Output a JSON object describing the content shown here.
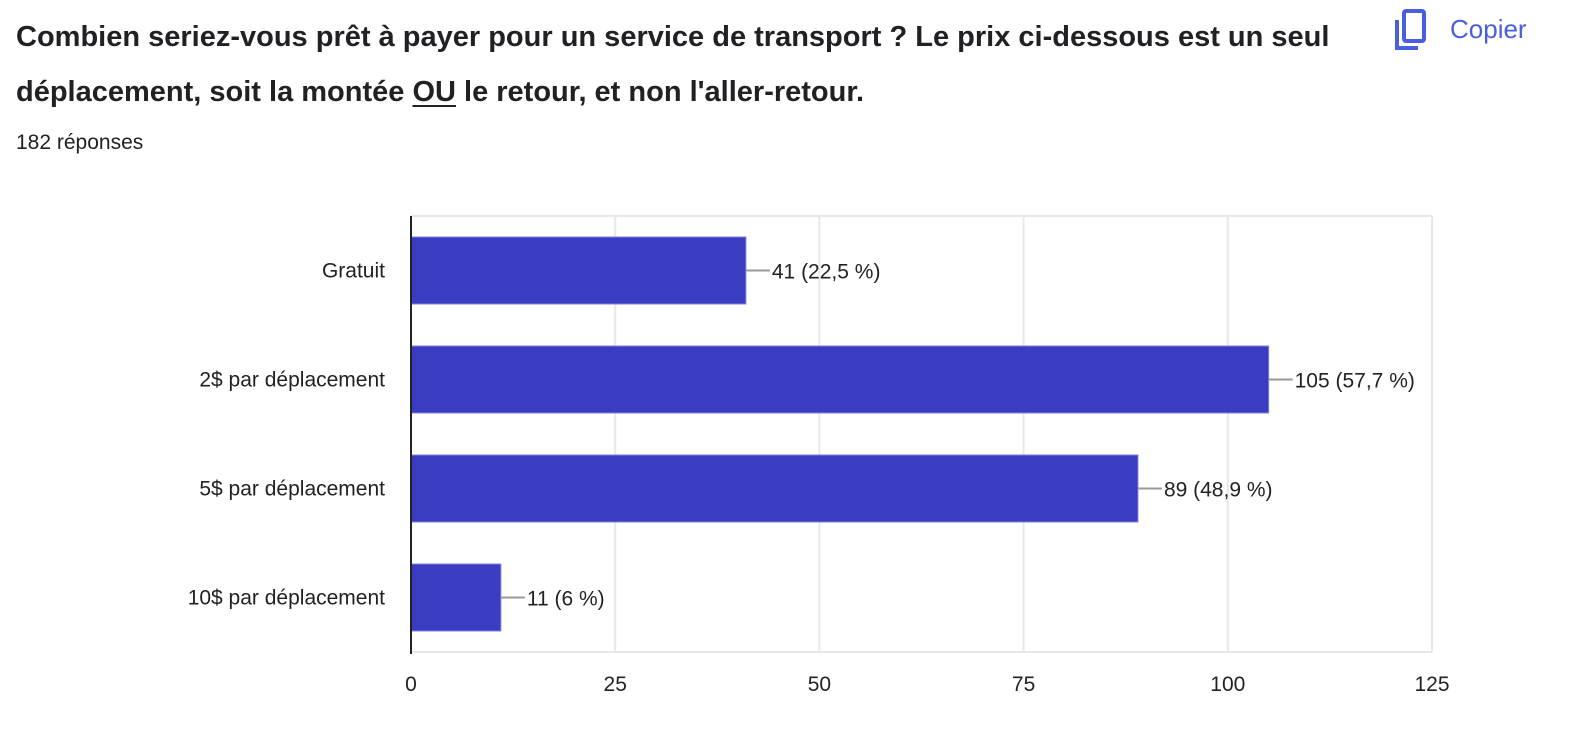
{
  "question": {
    "title_before": "Combien seriez-vous prêt à payer pour un service de transport ? Le prix ci-dessous est un seul déplacement, soit la montée ",
    "title_underlined": "OU",
    "title_after": " le retour, et non l'aller-retour.",
    "responses": "182 réponses"
  },
  "copy_button": {
    "label": "Copier",
    "icon": "copy-icon"
  },
  "colors": {
    "bar": "#3a3cc2",
    "accent": "#4a5fe0"
  },
  "chart_data": {
    "type": "bar",
    "orientation": "horizontal",
    "categories": [
      "Gratuit",
      "2$ par déplacement",
      "5$ par déplacement",
      "10$ par déplacement"
    ],
    "values": [
      41,
      105,
      89,
      11
    ],
    "data_labels": [
      "41 (22,5 %)",
      "105 (57,7 %)",
      "89 (48,9 %)",
      "11 (6 %)"
    ],
    "xlim": [
      0,
      125
    ],
    "xticks": [
      "0",
      "25",
      "50",
      "75",
      "100",
      "125"
    ],
    "grid": true
  }
}
